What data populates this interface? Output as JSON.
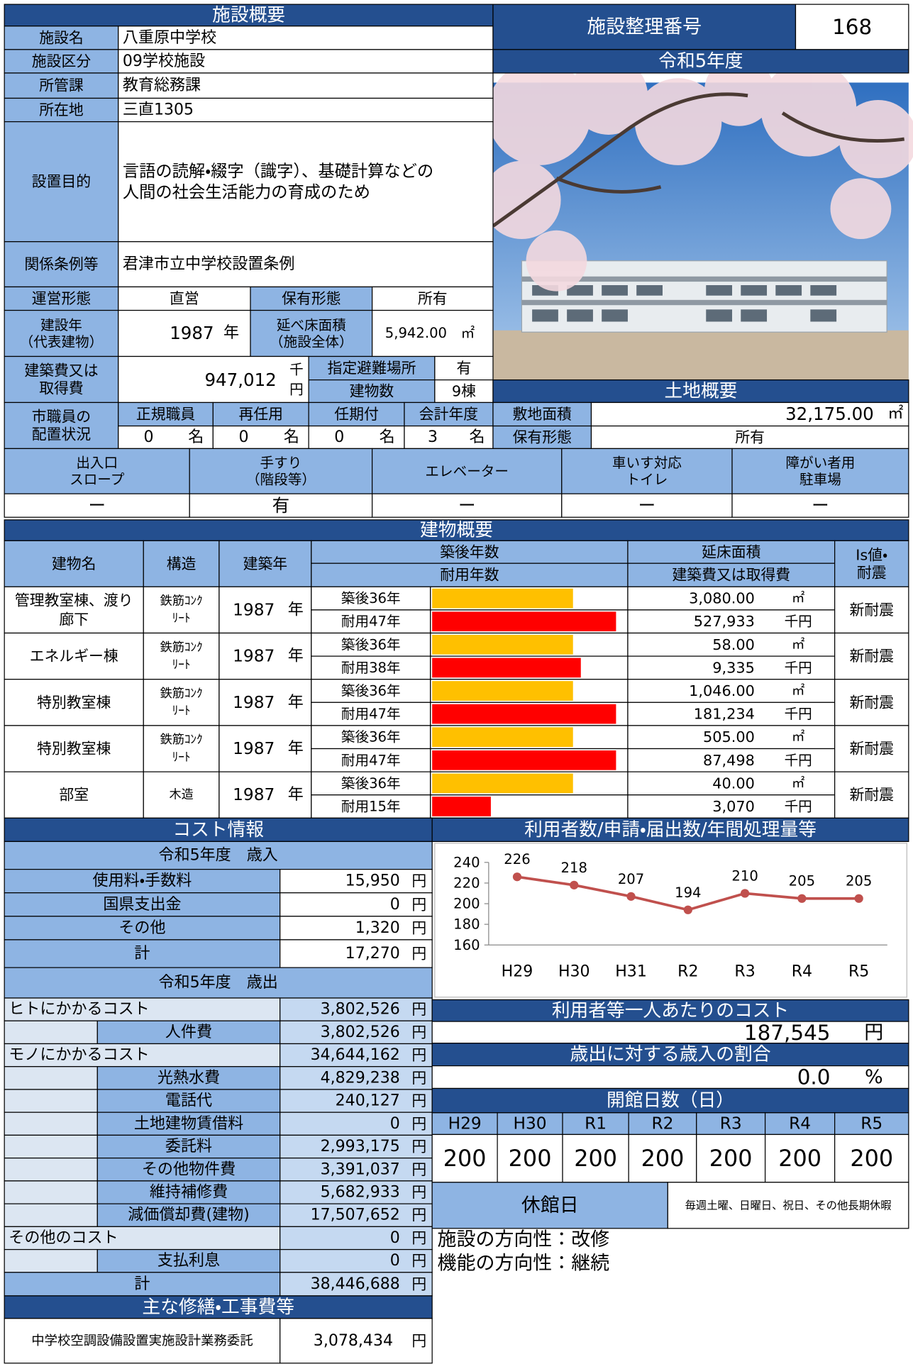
{
  "facility": {
    "title": "施設概要",
    "name": {
      "label": "施設名",
      "value": "八重原中学校"
    },
    "category": {
      "label": "施設区分",
      "value": "09学校施設"
    },
    "department": {
      "label": "所管課",
      "value": "教育総務課"
    },
    "location": {
      "label": "所在地",
      "value": "三直1305"
    },
    "purpose": {
      "label": "設置目的",
      "value": [
        "言語の読解・綴字（識字）、基礎計算などの",
        "人間の社会生活能力の育成のため"
      ]
    },
    "ordinance": {
      "label": "関係条例等",
      "value": "君津市立中学校設置条例"
    },
    "operation": {
      "label": "運営形態",
      "value": "直営"
    },
    "ownership": {
      "label": "保有形態",
      "value": "所有"
    },
    "built_year": {
      "label": [
        "建設年",
        "（代表建物）"
      ],
      "value": "1987",
      "unit": "年"
    },
    "floor_area": {
      "label": [
        "延べ床面積",
        "（施設全体）"
      ],
      "value": "5,942.00",
      "unit": "㎡"
    },
    "cost": {
      "label": [
        "建築費又は",
        "取得費"
      ],
      "value": "947,012",
      "unit": [
        "千",
        "円"
      ]
    },
    "shelter": {
      "label": "指定避難場所",
      "value": "有"
    },
    "buildings_count": {
      "label": "建物数",
      "value": "9棟"
    },
    "staff": {
      "label": [
        "市職員の",
        "配置状況"
      ],
      "unit": "名",
      "columns": [
        {
          "label": "正規職員",
          "value": "0"
        },
        {
          "label": "再任用",
          "value": "0"
        },
        {
          "label": "任期付",
          "value": "0"
        },
        {
          "label": "会計年度",
          "value": "3"
        }
      ]
    }
  },
  "id": {
    "label": "施設整理番号",
    "value": "168"
  },
  "fiscal_year": "令和5年度",
  "land": {
    "title": "土地概要",
    "area": {
      "label": "敷地面積",
      "value": "32,175.00",
      "unit": "㎡"
    },
    "ownership": {
      "label": "保有形態",
      "value": "所有"
    }
  },
  "accessibility": [
    {
      "label": [
        "出入口",
        "スロープ"
      ],
      "value": "ー"
    },
    {
      "label": [
        "手すり",
        "（階段等）"
      ],
      "value": "有"
    },
    {
      "label": [
        "エレベーター"
      ],
      "value": "ー"
    },
    {
      "label": [
        "車いす対応",
        "トイレ"
      ],
      "value": "ー"
    },
    {
      "label": [
        "障がい者用",
        "駐車場"
      ],
      "value": "ー"
    }
  ],
  "buildings": {
    "title": "建物概要",
    "headers": {
      "name": "建物名",
      "structure": "構造",
      "year": "建築年",
      "age": "築後年数",
      "life": "耐用年数",
      "area": "延床面積",
      "cost": "建築費又は取得費",
      "seismic": [
        "Is値・",
        "耐震"
      ]
    },
    "year_unit": "年",
    "area_unit": "㎡",
    "cost_unit": "千円",
    "xlim": [
      0,
      50
    ],
    "age_color": "#ffc000",
    "life_color": "#ff0000",
    "rows": [
      {
        "name": [
          "管理教室棟、渡り",
          "廊下"
        ],
        "structure": [
          "鉄筋ｺﾝｸ",
          "ﾘｰﾄ"
        ],
        "year": "1987",
        "age": {
          "value": 36,
          "label": "築後36年"
        },
        "life": {
          "value": 47,
          "label": "耐用47年"
        },
        "area": "3,080.00",
        "cost": "527,933",
        "seismic": "新耐震"
      },
      {
        "name": [
          "エネルギー棟"
        ],
        "structure": [
          "鉄筋ｺﾝｸ",
          "ﾘｰﾄ"
        ],
        "year": "1987",
        "age": {
          "value": 36,
          "label": "築後36年"
        },
        "life": {
          "value": 38,
          "label": "耐用38年"
        },
        "area": "58.00",
        "cost": "9,335",
        "seismic": "新耐震"
      },
      {
        "name": [
          "特別教室棟"
        ],
        "structure": [
          "鉄筋ｺﾝｸ",
          "ﾘｰﾄ"
        ],
        "year": "1987",
        "age": {
          "value": 36,
          "label": "築後36年"
        },
        "life": {
          "value": 47,
          "label": "耐用47年"
        },
        "area": "1,046.00",
        "cost": "181,234",
        "seismic": "新耐震"
      },
      {
        "name": [
          "特別教室棟"
        ],
        "structure": [
          "鉄筋ｺﾝｸ",
          "ﾘｰﾄ"
        ],
        "year": "1987",
        "age": {
          "value": 36,
          "label": "築後36年"
        },
        "life": {
          "value": 47,
          "label": "耐用47年"
        },
        "area": "505.00",
        "cost": "87,498",
        "seismic": "新耐震"
      },
      {
        "name": [
          "部室"
        ],
        "structure": [
          "木造"
        ],
        "year": "1987",
        "age": {
          "value": 36,
          "label": "築後36年"
        },
        "life": {
          "value": 15,
          "label": "耐用15年"
        },
        "area": "40.00",
        "cost": "3,070",
        "seismic": "新耐震"
      }
    ]
  },
  "cost": {
    "title": "コスト情報",
    "unit": "円",
    "revenue": {
      "title": "令和5年度　歳入",
      "items": [
        {
          "label": "使用料・手数料",
          "value": "15,950"
        },
        {
          "label": "国県支出金",
          "value": "0"
        },
        {
          "label": "その他",
          "value": "1,320"
        },
        {
          "label": "計",
          "value": "17,270"
        }
      ]
    },
    "expenditure": {
      "title": "令和5年度　歳出",
      "groups": [
        {
          "label": "ヒトにかかるコスト",
          "value": "3,802,526",
          "items": [
            {
              "label": "人件費",
              "value": "3,802,526"
            }
          ]
        },
        {
          "label": "モノにかかるコスト",
          "value": "34,644,162",
          "items": [
            {
              "label": "光熱水費",
              "value": "4,829,238"
            },
            {
              "label": "電話代",
              "value": "240,127"
            },
            {
              "label": "土地建物賃借料",
              "value": "0"
            },
            {
              "label": "委託料",
              "value": "2,993,175"
            },
            {
              "label": "その他物件費",
              "value": "3,391,037"
            },
            {
              "label": "維持補修費",
              "value": "5,682,933"
            },
            {
              "label": "減価償却費(建物)",
              "value": "17,507,652"
            }
          ]
        },
        {
          "label": "その他のコスト",
          "value": "0",
          "items": [
            {
              "label": "支払利息",
              "value": "0"
            }
          ]
        }
      ],
      "total": {
        "label": "計",
        "value": "38,446,688"
      }
    },
    "repairs": {
      "title": "主な修繕・工事費等",
      "items": [
        {
          "label": "中学校空調設備設置実施設計業務委託",
          "value": "3,078,434"
        }
      ]
    }
  },
  "chart_data": {
    "type": "line",
    "title": "利用者数/申請・届出数/年間処理量等",
    "categories": [
      "H29",
      "H30",
      "H31",
      "R2",
      "R3",
      "R4",
      "R5"
    ],
    "values": [
      226,
      218,
      207,
      194,
      210,
      205,
      205
    ],
    "color": "#c0504d",
    "ylim": [
      160,
      240
    ],
    "yticks": [
      160,
      180,
      200,
      220,
      240
    ]
  },
  "per_user_cost": {
    "title": "利用者等一人あたりのコスト",
    "value": "187,545",
    "unit": "円"
  },
  "revenue_ratio": {
    "title": "歳出に対する歳入の割合",
    "value": "0.0",
    "unit": "%"
  },
  "open_days": {
    "title": "開館日数（日）",
    "categories": [
      "H29",
      "H30",
      "R1",
      "R2",
      "R3",
      "R4",
      "R5"
    ],
    "values": [
      "200",
      "200",
      "200",
      "200",
      "200",
      "200",
      "200"
    ]
  },
  "closed_days": {
    "label": "休館日",
    "value": "毎週土曜、日曜日、祝日、その他長期休暇"
  },
  "direction": [
    "施設の方向性：改修",
    "機能の方向性：継続"
  ]
}
